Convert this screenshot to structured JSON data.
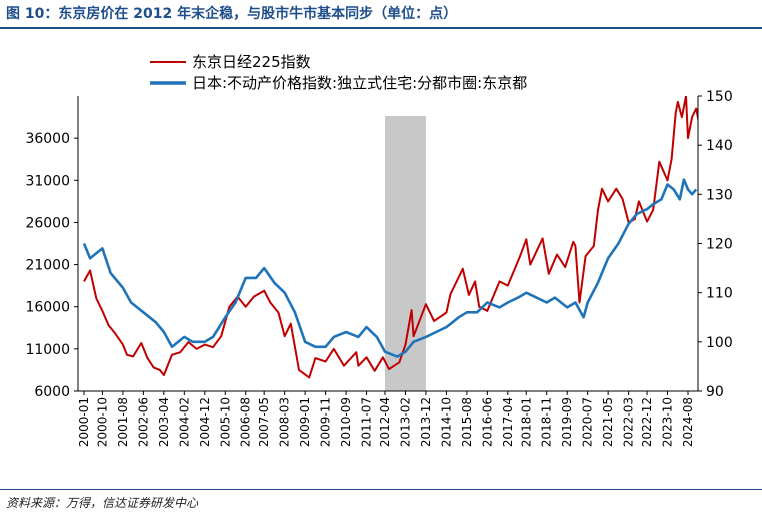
{
  "figure": {
    "title": "图 10：东京房价在 2012 年末企稳，与股市牛市基本同步（单位：点）",
    "source": "资料来源：万得，信达证券研发中心"
  },
  "chart_data": {
    "type": "line",
    "x_tick_labels": [
      "2000-01",
      "2000-10",
      "2001-08",
      "2002-06",
      "2003-04",
      "2004-02",
      "2004-12",
      "2005-10",
      "2006-08",
      "2007-05",
      "2008-03",
      "2009-01",
      "2009-11",
      "2010-09",
      "2011-07",
      "2012-04",
      "2013-02",
      "2013-12",
      "2014-10",
      "2015-08",
      "2016-06",
      "2017-04",
      "2018-01",
      "2018-11",
      "2019-09",
      "2020-07",
      "2021-05",
      "2022-03",
      "2022-12",
      "2023-10",
      "2024-08"
    ],
    "y_left": {
      "min": 6000,
      "max": 41000,
      "ticks": [
        6000,
        11000,
        16000,
        21000,
        26000,
        31000,
        36000
      ]
    },
    "y_right": {
      "min": 90,
      "max": 150,
      "ticks": [
        90,
        100,
        110,
        120,
        130,
        140,
        150
      ]
    },
    "shaded_period": {
      "start": "2012-04",
      "end": "2013-12",
      "color": "#c8c8c8"
    },
    "series": [
      {
        "name": "东京日经225指数",
        "axis": "left",
        "color": "#c00000",
        "points": [
          [
            "2000-01",
            19000
          ],
          [
            "2000-04",
            20300
          ],
          [
            "2000-07",
            17000
          ],
          [
            "2000-10",
            15500
          ],
          [
            "2001-01",
            13800
          ],
          [
            "2001-04",
            12900
          ],
          [
            "2001-08",
            11500
          ],
          [
            "2001-10",
            10300
          ],
          [
            "2002-01",
            10100
          ],
          [
            "2002-05",
            11700
          ],
          [
            "2002-08",
            9900
          ],
          [
            "2002-11",
            8800
          ],
          [
            "2003-02",
            8500
          ],
          [
            "2003-04",
            7900
          ],
          [
            "2003-08",
            10300
          ],
          [
            "2003-12",
            10600
          ],
          [
            "2004-04",
            11800
          ],
          [
            "2004-08",
            11000
          ],
          [
            "2004-12",
            11500
          ],
          [
            "2005-04",
            11200
          ],
          [
            "2005-08",
            12500
          ],
          [
            "2005-12",
            16000
          ],
          [
            "2006-04",
            17200
          ],
          [
            "2006-08",
            16000
          ],
          [
            "2006-12",
            17200
          ],
          [
            "2007-05",
            17900
          ],
          [
            "2007-08",
            16500
          ],
          [
            "2007-12",
            15300
          ],
          [
            "2008-03",
            12500
          ],
          [
            "2008-06",
            14000
          ],
          [
            "2008-10",
            8500
          ],
          [
            "2009-03",
            7600
          ],
          [
            "2009-06",
            9900
          ],
          [
            "2009-11",
            9500
          ],
          [
            "2010-03",
            11000
          ],
          [
            "2010-08",
            9000
          ],
          [
            "2011-02",
            10600
          ],
          [
            "2011-03",
            9000
          ],
          [
            "2011-07",
            10000
          ],
          [
            "2011-11",
            8400
          ],
          [
            "2012-03",
            10000
          ],
          [
            "2012-06",
            8600
          ],
          [
            "2012-11",
            9400
          ],
          [
            "2013-02",
            11500
          ],
          [
            "2013-05",
            15600
          ],
          [
            "2013-06",
            12500
          ],
          [
            "2013-12",
            16300
          ],
          [
            "2014-04",
            14300
          ],
          [
            "2014-10",
            15300
          ],
          [
            "2014-12",
            17500
          ],
          [
            "2015-06",
            20500
          ],
          [
            "2015-09",
            17400
          ],
          [
            "2015-12",
            19000
          ],
          [
            "2016-02",
            16000
          ],
          [
            "2016-06",
            15500
          ],
          [
            "2016-12",
            19000
          ],
          [
            "2017-04",
            18500
          ],
          [
            "2017-10",
            22000
          ],
          [
            "2018-01",
            24000
          ],
          [
            "2018-03",
            21000
          ],
          [
            "2018-09",
            24100
          ],
          [
            "2018-12",
            19900
          ],
          [
            "2019-04",
            22200
          ],
          [
            "2019-08",
            20700
          ],
          [
            "2019-12",
            23700
          ],
          [
            "2020-01",
            23200
          ],
          [
            "2020-03",
            16500
          ],
          [
            "2020-06",
            22000
          ],
          [
            "2020-10",
            23200
          ],
          [
            "2020-12",
            27400
          ],
          [
            "2021-02",
            30000
          ],
          [
            "2021-05",
            28500
          ],
          [
            "2021-09",
            30000
          ],
          [
            "2021-12",
            28800
          ],
          [
            "2022-03",
            26000
          ],
          [
            "2022-06",
            26400
          ],
          [
            "2022-08",
            28500
          ],
          [
            "2022-12",
            26100
          ],
          [
            "2023-03",
            27500
          ],
          [
            "2023-06",
            33200
          ],
          [
            "2023-10",
            31000
          ],
          [
            "2023-12",
            33500
          ],
          [
            "2024-02",
            39000
          ],
          [
            "2024-03",
            40300
          ],
          [
            "2024-05",
            38500
          ],
          [
            "2024-07",
            41000
          ],
          [
            "2024-08",
            36000
          ],
          [
            "2024-10",
            38500
          ],
          [
            "2024-12",
            39500
          ],
          [
            "2025-02",
            37000
          ]
        ]
      },
      {
        "name": "日本:不动产价格指数:独立式住宅:分都市圈:东京都",
        "axis": "right",
        "color": "#1f73b8",
        "points": [
          [
            "2000-01",
            120
          ],
          [
            "2000-04",
            117
          ],
          [
            "2000-07",
            118
          ],
          [
            "2000-10",
            119
          ],
          [
            "2001-02",
            114
          ],
          [
            "2001-08",
            111
          ],
          [
            "2001-12",
            108
          ],
          [
            "2002-06",
            106
          ],
          [
            "2002-12",
            104
          ],
          [
            "2003-04",
            102
          ],
          [
            "2003-08",
            99
          ],
          [
            "2004-02",
            101
          ],
          [
            "2004-06",
            100
          ],
          [
            "2004-12",
            100
          ],
          [
            "2005-04",
            101
          ],
          [
            "2005-10",
            105
          ],
          [
            "2006-03",
            108
          ],
          [
            "2006-08",
            113
          ],
          [
            "2007-01",
            113
          ],
          [
            "2007-05",
            115
          ],
          [
            "2007-10",
            112
          ],
          [
            "2008-03",
            110
          ],
          [
            "2008-08",
            106
          ],
          [
            "2009-01",
            100
          ],
          [
            "2009-06",
            99
          ],
          [
            "2009-11",
            99
          ],
          [
            "2010-03",
            101
          ],
          [
            "2010-09",
            102
          ],
          [
            "2011-03",
            101
          ],
          [
            "2011-07",
            103
          ],
          [
            "2011-12",
            101
          ],
          [
            "2012-04",
            98
          ],
          [
            "2012-10",
            97
          ],
          [
            "2013-02",
            98
          ],
          [
            "2013-06",
            100
          ],
          [
            "2013-12",
            101
          ],
          [
            "2014-05",
            102
          ],
          [
            "2014-10",
            103
          ],
          [
            "2015-04",
            105
          ],
          [
            "2015-08",
            106
          ],
          [
            "2016-01",
            106
          ],
          [
            "2016-06",
            108
          ],
          [
            "2016-12",
            107
          ],
          [
            "2017-04",
            108
          ],
          [
            "2017-09",
            109
          ],
          [
            "2018-01",
            110
          ],
          [
            "2018-06",
            109
          ],
          [
            "2018-11",
            108
          ],
          [
            "2019-03",
            109
          ],
          [
            "2019-09",
            107
          ],
          [
            "2020-01",
            108
          ],
          [
            "2020-05",
            105
          ],
          [
            "2020-07",
            108
          ],
          [
            "2020-12",
            112
          ],
          [
            "2021-05",
            117
          ],
          [
            "2021-10",
            120
          ],
          [
            "2022-03",
            124
          ],
          [
            "2022-07",
            126
          ],
          [
            "2022-12",
            127
          ],
          [
            "2023-03",
            128
          ],
          [
            "2023-07",
            129
          ],
          [
            "2023-10",
            132
          ],
          [
            "2024-01",
            131
          ],
          [
            "2024-04",
            129
          ],
          [
            "2024-06",
            133
          ],
          [
            "2024-08",
            131
          ],
          [
            "2024-10",
            130
          ],
          [
            "2024-12",
            131
          ]
        ]
      }
    ]
  }
}
